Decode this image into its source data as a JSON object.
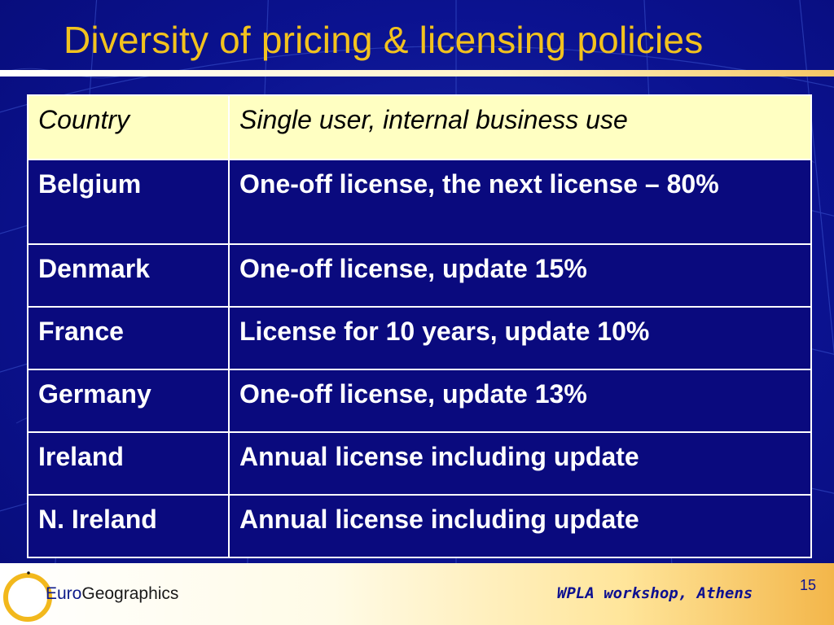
{
  "slide": {
    "title": "Diversity of pricing & licensing policies",
    "table": {
      "headers": [
        "Country",
        "Single user, internal business use"
      ],
      "rows": [
        [
          "Belgium",
          "One-off license, the next license – 80%"
        ],
        [
          "Denmark",
          "One-off license, update 15%"
        ],
        [
          "France",
          "License for 10 years, update 10%"
        ],
        [
          "Germany",
          "One-off license, update 13%"
        ],
        [
          "Ireland",
          "Annual license including update"
        ],
        [
          "N. Ireland",
          "Annual license including update"
        ]
      ]
    },
    "footer": {
      "logo_part1": "Euro",
      "logo_part2": "Geographics",
      "event": "WPLA workshop, Athens",
      "page_number": "15"
    }
  },
  "colors": {
    "background": "#0b1290",
    "title": "#f2c21e",
    "header_row": "#ffffc2",
    "body_row": "#0a0a7e"
  }
}
